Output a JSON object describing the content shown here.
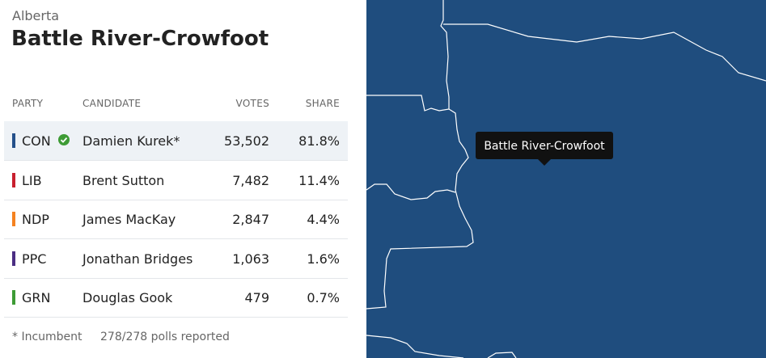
{
  "header": {
    "province": "Alberta",
    "title": "Battle River-Crowfoot"
  },
  "table": {
    "columns": [
      "PARTY",
      "CANDIDATE",
      "VOTES",
      "SHARE"
    ],
    "rows": [
      {
        "party": "CON",
        "color": "#24508a",
        "candidate": "Damien Kurek*",
        "votes": "53,502",
        "share": "81.8%",
        "winner": true
      },
      {
        "party": "LIB",
        "color": "#c8202e",
        "candidate": "Brent Sutton",
        "votes": "7,482",
        "share": "11.4%",
        "winner": false
      },
      {
        "party": "NDP",
        "color": "#f58220",
        "candidate": "James MacKay",
        "votes": "2,847",
        "share": "4.4%",
        "winner": false
      },
      {
        "party": "PPC",
        "color": "#4b2e83",
        "candidate": "Jonathan Bridges",
        "votes": "1,063",
        "share": "1.6%",
        "winner": false
      },
      {
        "party": "GRN",
        "color": "#3d9b35",
        "candidate": "Douglas Gook",
        "votes": "479",
        "share": "0.7%",
        "winner": false
      }
    ]
  },
  "footer": {
    "note": "* Incumbent",
    "polls": "278/278 polls reported"
  },
  "map": {
    "tooltip": "Battle River-Crowfoot"
  }
}
